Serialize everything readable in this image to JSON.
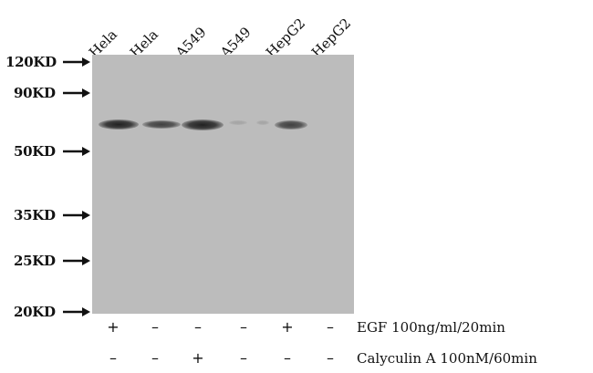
{
  "lanes": [
    "Hela",
    "Hela",
    "A549",
    "A549",
    "HepG2",
    "HepG2"
  ],
  "markers": [
    "120KD",
    "90KD",
    "50KD",
    "35KD",
    "25KD",
    "20KD"
  ],
  "treatments": [
    {
      "label": "EGF 100ng/ml/20min",
      "signs": [
        "+",
        "–",
        "–",
        "–",
        "+",
        "–"
      ]
    },
    {
      "label": "Calyculin A 100nM/60min",
      "signs": [
        "–",
        "–",
        "+",
        "–",
        "–",
        "–"
      ]
    }
  ],
  "band_intensity": [
    1.0,
    0.8,
    1.0,
    0.15,
    0.8,
    0.0
  ]
}
